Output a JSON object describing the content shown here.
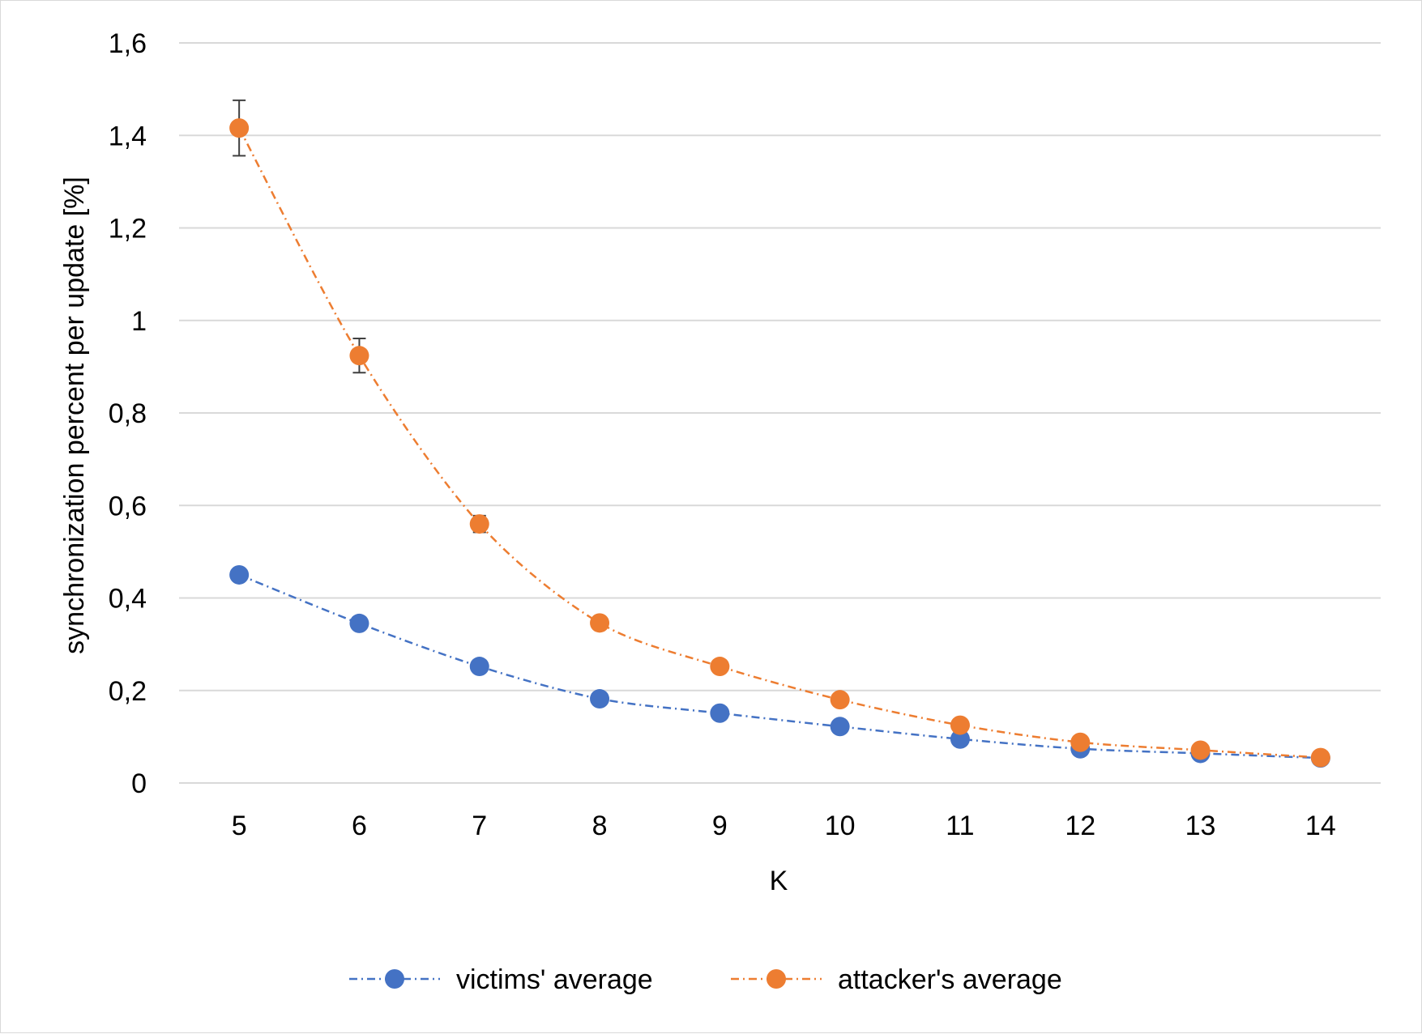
{
  "chart_data": {
    "type": "line",
    "title": "",
    "xlabel": "K",
    "ylabel": "synchronization percent per update [%]",
    "x": [
      5,
      6,
      7,
      8,
      9,
      10,
      11,
      12,
      13,
      14
    ],
    "x_tick_labels": [
      "5",
      "6",
      "7",
      "8",
      "9",
      "10",
      "11",
      "12",
      "13",
      "14"
    ],
    "ylim": [
      0,
      1.6
    ],
    "y_ticks": [
      0,
      0.2,
      0.4,
      0.6,
      0.8,
      1,
      1.2,
      1.4,
      1.6
    ],
    "y_tick_labels": [
      "0",
      "0,2",
      "0,4",
      "0,6",
      "0,8",
      "1",
      "1,2",
      "1,4",
      "1,6"
    ],
    "grid": "horizontal",
    "legend_position": "bottom",
    "series": [
      {
        "name": "victims' average",
        "color": "#4472c4",
        "values": [
          0.45,
          0.345,
          0.252,
          0.182,
          0.151,
          0.122,
          0.095,
          0.074,
          0.064,
          0.054
        ],
        "error": [
          0.01,
          0.008,
          0.006,
          0.004,
          0.003,
          0.002,
          0.002,
          0.001,
          0.001,
          0.001
        ]
      },
      {
        "name": "attacker's average",
        "color": "#ed7d31",
        "values": [
          1.416,
          0.924,
          0.56,
          0.346,
          0.252,
          0.18,
          0.125,
          0.088,
          0.071,
          0.055
        ],
        "error": [
          0.06,
          0.037,
          0.018,
          0.006,
          0.004,
          0.003,
          0.002,
          0.002,
          0.001,
          0.001
        ]
      }
    ],
    "colors": {
      "grid": "#d9d9d9",
      "error_bar": "#404040"
    }
  }
}
